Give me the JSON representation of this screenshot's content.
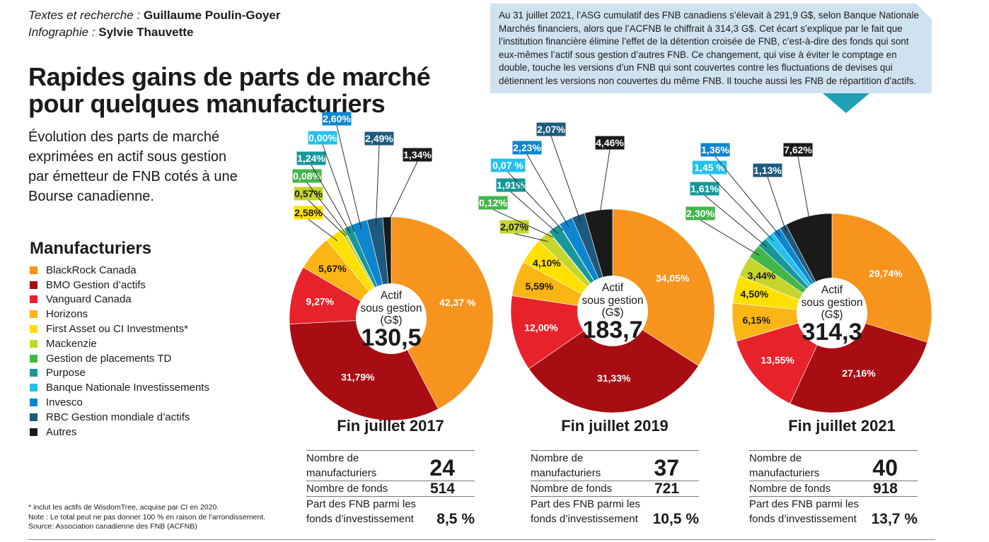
{
  "credits": {
    "text_label": "Textes et recherche :",
    "text_name": "Guillaume Poulin-Goyer",
    "graphics_label": "Infographie :",
    "graphics_name": "Sylvie Thauvette"
  },
  "title": "Rapides gains de parts de marché pour quelques manufacturiers",
  "subtitle": "Évolution des parts de marché exprimées en actif sous gestion par émetteur de FNB cotés à une Bourse canadienne.",
  "note": "Au 31 juillet 2021, l’ASG cumulatif des FNB canadiens s’élevait à 291,9 G$, selon Banque Nationale Marchés financiers, alors que l’ACFNB le chiffrait à 314,3 G$. Cet écart s’explique par le fait que l’institution financière élimine l’effet de la détention croisée de FNB, c’est-à-dire des fonds qui sont eux-mêmes l’actif sous gestion d’autres FNB. Ce changement, qui vise à éviter le comptage en double, touche les versions d’un FNB qui sont couvertes contre les fluctuations de devises qui détiennent les versions non couvertes du même FNB. Il touche aussi les FNB de répartition d’actifs.",
  "legend_title": "Manufacturiers",
  "footnote": {
    "line1": "* inclut les actifs de WisdomTree, acquise par CI en 2020.",
    "line2": "Note : Le total peut ne pas donner 100 % en raison de l’arrondissement.",
    "line3": "Source: Association canadienne des FNB (ACFNB)"
  },
  "center": {
    "line1": "Actif",
    "line2": "sous gestion",
    "line3": "(G$)"
  },
  "stat_labels": {
    "managers": "Nombre de manufacturiers",
    "funds": "Nombre de fonds",
    "share": "Part des FNB parmi les fonds d’investissement"
  },
  "chart_data": {
    "type": "pie",
    "variant": "donut",
    "categories": [
      "BlackRock Canada",
      "BMO Gestion d’actifs",
      "Vanguard Canada",
      "Horizons",
      "First Asset ou CI Investments*",
      "Mackenzie",
      "Gestion de placements TD",
      "Purpose",
      "Banque Nationale Investissements",
      "Invesco",
      "RBC Gestion mondiale d’actifs",
      "Autres"
    ],
    "colors": [
      "#f7941d",
      "#a80d13",
      "#e8222b",
      "#fbb515",
      "#ffe000",
      "#c6d52d",
      "#44b549",
      "#179799",
      "#25c1ee",
      "#0d86cf",
      "#1e5a7e",
      "#1a1a1a"
    ],
    "series": [
      {
        "name": "Fin juillet 2017",
        "aum": "130,5",
        "values": [
          42.37,
          31.79,
          9.27,
          5.67,
          2.58,
          0.57,
          0.08,
          1.24,
          0.0,
          2.6,
          2.49,
          1.34
        ],
        "labels": [
          "42,37 %",
          "31,79%",
          "9,27%",
          "5,67%",
          "2,58%",
          "0,57%",
          "0,08%",
          "1,24%",
          "0,00%",
          "2,60%",
          "2,49%",
          "1,34%"
        ],
        "stats": {
          "managers": "24",
          "funds": "514",
          "share": "8,5 %"
        }
      },
      {
        "name": "Fin juillet 2019",
        "aum": "183,7",
        "values": [
          34.05,
          31.33,
          12.0,
          5.59,
          4.1,
          2.07,
          0.12,
          1.91,
          0.07,
          2.23,
          2.07,
          4.46
        ],
        "labels": [
          "34,05%",
          "31,33%",
          "12,00%",
          "5,59%",
          "4,10%",
          "2,07%",
          "0,12%",
          "1,91%",
          "0,07 %",
          "2,23%",
          "2,07%",
          "4,46%"
        ],
        "stats": {
          "managers": "37",
          "funds": "721",
          "share": "10,5 %"
        }
      },
      {
        "name": "Fin juillet 2021",
        "aum": "314,3",
        "values": [
          29.74,
          27.16,
          13.55,
          6.15,
          4.5,
          3.44,
          2.3,
          1.61,
          1.45,
          1.36,
          1.13,
          7.62
        ],
        "labels": [
          "29,74%",
          "27,16%",
          "13,55%",
          "6,15%",
          "4,50%",
          "3,44%",
          "2,30%",
          "1,61%",
          "1,45 %",
          "1,36%",
          "1,13%",
          "7,62%"
        ],
        "stats": {
          "managers": "40",
          "funds": "918",
          "share": "13,7 %"
        }
      }
    ]
  }
}
